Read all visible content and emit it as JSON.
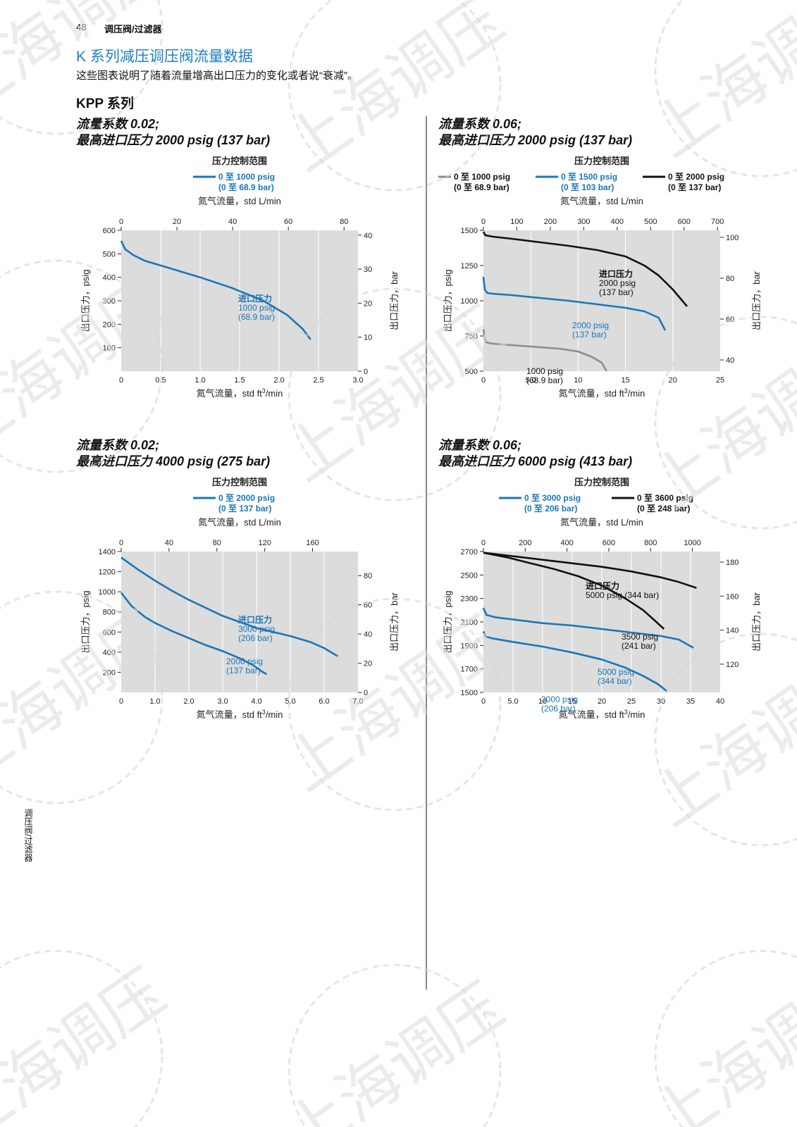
{
  "header": {
    "page_number": "48",
    "section": "调压阀/过滤器"
  },
  "title": "K 系列减压调压阀流量数据",
  "intro": "这些图表说明了随着流量增高出口压力的变化或者说“衰减”。",
  "series_title": "KPP 系列",
  "sidebar_text": "调压阀/过滤器",
  "watermark_text": "上海调压",
  "colors": {
    "blue": "#1a76b8",
    "black": "#111111",
    "gray": "#8c8c8c",
    "plot_bg": "#dcdcdc",
    "title_blue": "#1f7fc4"
  },
  "common_labels": {
    "range_title": "压力控制范围",
    "top_axis": "氮气流量，std L/min",
    "bottom_axis_prefix": "氮气流量，std ft",
    "bottom_axis_sup": "3",
    "bottom_axis_suffix": "/min",
    "left_axis": "出口压力，psig",
    "right_axis": "出口压力，bar"
  },
  "charts": [
    {
      "title_line1": "流量系数 0.02;",
      "title_line2": "最高进口压力 2000 psig (137 bar)",
      "legend": [
        {
          "l1": "0 至 1000 psig",
          "l2": "(0 至 68.9 bar)",
          "color": "#1a76b8"
        }
      ],
      "annotations": [
        {
          "lines": [
            "进口压力",
            "1000 psig",
            "(68.9 bar)"
          ],
          "color": "#1a76b8",
          "bold_first": true
        }
      ]
    },
    {
      "title_line1": "流量系数 0.06;",
      "title_line2": "最高进口压力 2000 psig (137 bar)",
      "legend": [
        {
          "l1": "0 至 1000 psig",
          "l2": "(0 至 68.9 bar)",
          "color": "#8c8c8c"
        },
        {
          "l1": "0 至 1500 psig",
          "l2": "(0 至 103 bar)",
          "color": "#1a76b8"
        },
        {
          "l1": "0 至 2000 psig",
          "l2": "(0 至 137 bar)",
          "color": "#111111"
        }
      ],
      "annotations": [
        {
          "lines": [
            "进口压力",
            "2000 psig",
            "(137 bar)"
          ],
          "color": "#111111",
          "bold_first": true
        },
        {
          "lines": [
            "2000 psig",
            "(137 bar)"
          ],
          "color": "#1a76b8",
          "bold_first": false
        },
        {
          "lines": [
            "1000 psig",
            "(68.9 bar)"
          ],
          "color": "#111111",
          "bold_first": false
        }
      ]
    },
    {
      "title_line1": "流量系数 0.02;",
      "title_line2": "最高进口压力 4000 psig (275 bar)",
      "legend": [
        {
          "l1": "0 至 2000 psig",
          "l2": "(0 至 137 bar)",
          "color": "#1a76b8"
        }
      ],
      "annotations": [
        {
          "lines": [
            "进口压力",
            "3000 psig",
            "(206 bar)"
          ],
          "color": "#1a76b8",
          "bold_first": true
        },
        {
          "lines": [
            "2000 psig",
            "(137 bar)"
          ],
          "color": "#1a76b8",
          "bold_first": false
        }
      ]
    },
    {
      "title_line1": "流量系数 0.06;",
      "title_line2": "最高进口压力 6000 psig (413 bar)",
      "legend": [
        {
          "l1": "0 至 3000 psig",
          "l2": "(0 至 206 bar)",
          "color": "#1a76b8"
        },
        {
          "l1": "0 至 3600 psig",
          "l2": "(0 至 248 bar)",
          "color": "#111111"
        }
      ],
      "annotations": [
        {
          "lines": [
            "进口压力",
            "5000 psig (344 bar)"
          ],
          "color": "#111111",
          "bold_first": true
        },
        {
          "lines": [
            "3500 psig",
            "(241 bar)"
          ],
          "color": "#111111",
          "bold_first": false
        },
        {
          "lines": [
            "5000 psig",
            "(344 bar)"
          ],
          "color": "#1a76b8",
          "bold_first": false
        },
        {
          "lines": [
            "3000 psig",
            "(206 bar)"
          ],
          "color": "#1a76b8",
          "bold_first": false
        }
      ]
    }
  ],
  "chart_data": [
    {
      "type": "line",
      "x_top": {
        "label": "氮气流量，std L/min",
        "ticks": [
          "0",
          "20",
          "40",
          "60",
          "80"
        ],
        "lim": [
          0,
          85
        ]
      },
      "x_bottom": {
        "label": "氮气流量，std ft3/min",
        "ticks": [
          "0",
          "0.5",
          "1.0",
          "1.5",
          "2.0",
          "2.5",
          "3.0"
        ],
        "lim": [
          0,
          3.0
        ]
      },
      "y_left": {
        "label": "出口压力，psig",
        "ticks": [
          "100",
          "200",
          "300",
          "400",
          "500",
          "600"
        ],
        "lim": [
          0,
          600
        ]
      },
      "y_right": {
        "label": "出口压力，bar",
        "ticks": [
          "0",
          "10",
          "20",
          "30",
          "40"
        ],
        "lim": [
          0,
          41.4
        ]
      },
      "series": [
        {
          "color": "#1a76b8",
          "x": [
            0,
            0.05,
            0.15,
            0.3,
            0.6,
            1.0,
            1.4,
            1.8,
            2.1,
            2.3,
            2.4
          ],
          "y": [
            555,
            520,
            495,
            470,
            440,
            400,
            355,
            300,
            240,
            180,
            135
          ]
        }
      ]
    },
    {
      "type": "line",
      "x_top": {
        "label": "氮气流量，std L/min",
        "ticks": [
          "0",
          "100",
          "200",
          "300",
          "400",
          "500",
          "600",
          "700"
        ],
        "lim": [
          0,
          708
        ]
      },
      "x_bottom": {
        "label": "氮气流量，std ft3/min",
        "ticks": [
          "0",
          "5.0",
          "10",
          "15",
          "20",
          "25"
        ],
        "lim": [
          0,
          25
        ]
      },
      "y_left": {
        "label": "出口压力，psig",
        "ticks": [
          "500",
          "750",
          "1000",
          "1250",
          "1500"
        ],
        "lim": [
          500,
          1500
        ]
      },
      "y_right": {
        "label": "出口压力，bar",
        "ticks": [
          "40",
          "60",
          "80",
          "100"
        ],
        "lim": [
          34.5,
          103.4
        ]
      },
      "series": [
        {
          "color": "#111111",
          "x": [
            0,
            0.2,
            1,
            3,
            6,
            9,
            12,
            15,
            17,
            18.5,
            20,
            21.5
          ],
          "y": [
            1490,
            1465,
            1455,
            1440,
            1415,
            1390,
            1360,
            1315,
            1250,
            1180,
            1080,
            960
          ]
        },
        {
          "color": "#1a76b8",
          "x": [
            0,
            0.15,
            0.4,
            1,
            3,
            6,
            9,
            12,
            15,
            17,
            18.5,
            19.2
          ],
          "y": [
            1170,
            1080,
            1055,
            1050,
            1040,
            1020,
            1000,
            975,
            950,
            925,
            880,
            790
          ]
        },
        {
          "color": "#8c8c8c",
          "x": [
            0,
            0.1,
            0.3,
            1,
            2,
            4,
            6,
            8,
            10,
            11.5,
            12.5,
            13
          ],
          "y": [
            800,
            740,
            705,
            695,
            690,
            680,
            670,
            660,
            640,
            600,
            560,
            500
          ]
        }
      ]
    },
    {
      "type": "line",
      "x_top": {
        "label": "氮气流量，std L/min",
        "ticks": [
          "0",
          "40",
          "80",
          "120",
          "160"
        ],
        "lim": [
          0,
          198
        ]
      },
      "x_bottom": {
        "label": "氮气流量，std ft3/min",
        "ticks": [
          "0",
          "1.0",
          "2.0",
          "3.0",
          "4.0",
          "5.0",
          "6.0",
          "7.0"
        ],
        "lim": [
          0,
          7.0
        ]
      },
      "y_left": {
        "label": "出口压力，psig",
        "ticks": [
          "200",
          "400",
          "600",
          "800",
          "1000",
          "1200",
          "1400"
        ],
        "lim": [
          0,
          1400
        ]
      },
      "y_right": {
        "label": "出口压力，bar",
        "ticks": [
          "0",
          "20",
          "40",
          "60",
          "80"
        ],
        "lim": [
          0,
          96.5
        ]
      },
      "series": [
        {
          "color": "#1a76b8",
          "x": [
            0,
            0.5,
            1,
            1.5,
            2,
            3,
            4,
            5,
            5.6,
            6.0,
            6.4
          ],
          "y": [
            1340,
            1220,
            1110,
            1010,
            920,
            760,
            640,
            560,
            500,
            440,
            360
          ]
        },
        {
          "color": "#1a76b8",
          "x": [
            0,
            0.3,
            0.7,
            1,
            1.5,
            2,
            2.5,
            3,
            3.5,
            3.9,
            4.15,
            4.3
          ],
          "y": [
            990,
            860,
            750,
            690,
            610,
            540,
            470,
            410,
            340,
            270,
            210,
            180
          ]
        }
      ]
    },
    {
      "type": "line",
      "x_top": {
        "label": "氮气流量，std L/min",
        "ticks": [
          "0",
          "200",
          "400",
          "600",
          "800",
          "1000"
        ],
        "lim": [
          0,
          1133
        ]
      },
      "x_bottom": {
        "label": "氮气流量，std ft3/min",
        "ticks": [
          "0",
          "5.0",
          "10",
          "15",
          "20",
          "25",
          "30",
          "35",
          "40"
        ],
        "lim": [
          0,
          40
        ]
      },
      "y_left": {
        "label": "出口压力，psig",
        "ticks": [
          "1500",
          "1700",
          "1900",
          "2100",
          "2300",
          "2500",
          "2700"
        ],
        "lim": [
          1500,
          2700
        ]
      },
      "y_right": {
        "label": "出口压力，bar",
        "ticks": [
          "120",
          "140",
          "160",
          "180"
        ],
        "lim": [
          103.4,
          186.2
        ]
      },
      "series": [
        {
          "color": "#111111",
          "x": [
            0,
            5,
            10,
            15,
            20,
            25,
            30,
            33,
            36
          ],
          "y": [
            2690,
            2660,
            2630,
            2600,
            2570,
            2530,
            2480,
            2440,
            2390
          ]
        },
        {
          "color": "#111111",
          "x": [
            0,
            4,
            8,
            12,
            16,
            20,
            24,
            27,
            29,
            30.5
          ],
          "y": [
            2690,
            2650,
            2600,
            2550,
            2490,
            2410,
            2300,
            2200,
            2110,
            2040
          ]
        },
        {
          "color": "#1a76b8",
          "x": [
            0,
            0.5,
            2,
            6,
            10,
            15,
            20,
            25,
            30,
            33,
            35.5
          ],
          "y": [
            2220,
            2160,
            2140,
            2115,
            2090,
            2070,
            2040,
            2010,
            1980,
            1950,
            1880
          ]
        },
        {
          "color": "#1a76b8",
          "x": [
            0,
            0.4,
            1.5,
            5,
            10,
            15,
            20,
            24,
            27,
            29.5,
            31
          ],
          "y": [
            2020,
            1975,
            1960,
            1930,
            1890,
            1840,
            1780,
            1710,
            1640,
            1570,
            1510
          ]
        }
      ]
    }
  ]
}
